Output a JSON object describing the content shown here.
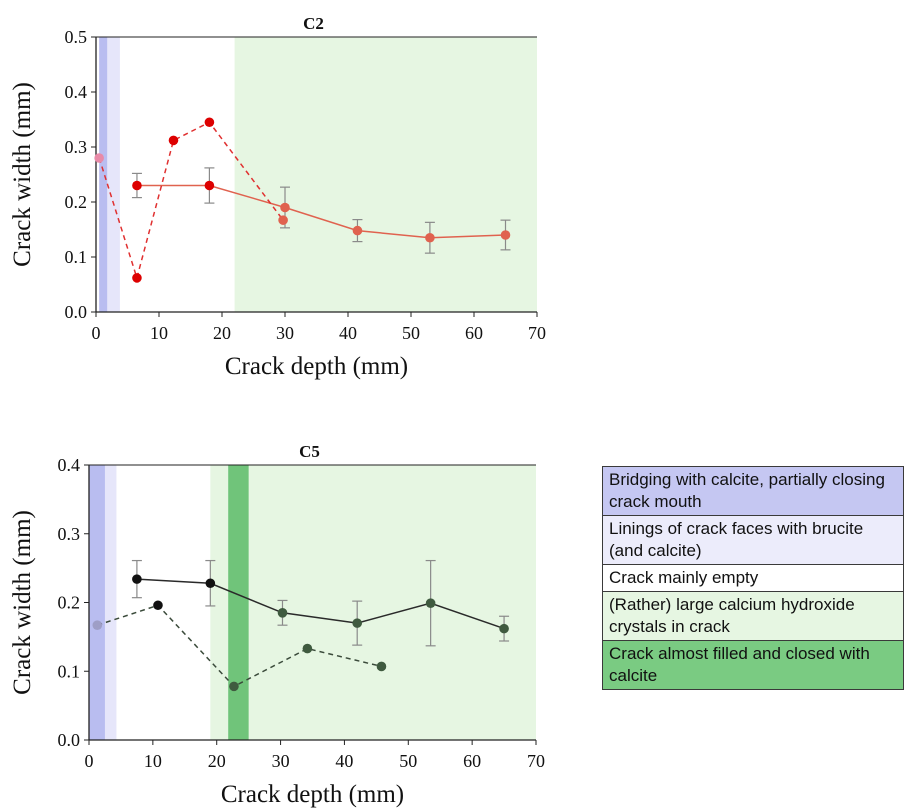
{
  "chart_data": [
    {
      "type": "line",
      "title": "C2",
      "xlabel": "Crack depth (mm)",
      "ylabel": "Crack width (mm)",
      "xlim": [
        0,
        70
      ],
      "ylim": [
        0,
        0.5
      ],
      "xticks": [
        "0",
        "10",
        "20",
        "30",
        "40",
        "50",
        "60",
        "70"
      ],
      "yticks": [
        "0.0",
        "0.1",
        "0.2",
        "0.3",
        "0.4",
        "0.5"
      ],
      "zones": [
        {
          "x0": 0.5,
          "x1": 1.8,
          "color": "#b9bdf0"
        },
        {
          "x0": 1.8,
          "x1": 3.8,
          "color": "#e6e6fa"
        },
        {
          "x0": 22,
          "x1": 70,
          "color": "#e6f6e2"
        }
      ],
      "series": [
        {
          "style": "solid",
          "color": "#e0624f",
          "points": [
            {
              "x": 6.5,
              "y": 0.23,
              "err": 0.022,
              "color": "#dd0000"
            },
            {
              "x": 18,
              "y": 0.23,
              "err": 0.032,
              "color": "#dd0000"
            },
            {
              "x": 30,
              "y": 0.19,
              "err": 0.037
            },
            {
              "x": 41.5,
              "y": 0.148,
              "err": 0.02
            },
            {
              "x": 53,
              "y": 0.135,
              "err": 0.028
            },
            {
              "x": 65,
              "y": 0.14,
              "err": 0.027
            }
          ]
        },
        {
          "style": "dashed",
          "color": "#e03030",
          "points": [
            {
              "x": 0.5,
              "y": 0.28,
              "color": "#e88aa8"
            },
            {
              "x": 6.5,
              "y": 0.062,
              "color": "#dd0000"
            },
            {
              "x": 12.3,
              "y": 0.312,
              "color": "#dd0000"
            },
            {
              "x": 18,
              "y": 0.345,
              "color": "#dd0000"
            },
            {
              "x": 29.7,
              "y": 0.167,
              "color": "#e0624f"
            }
          ]
        }
      ]
    },
    {
      "type": "line",
      "title": "C5",
      "xlabel": "Crack depth (mm)",
      "ylabel": "Crack width (mm)",
      "xlim": [
        0,
        70
      ],
      "ylim": [
        0,
        0.4
      ],
      "xticks": [
        "0",
        "10",
        "20",
        "30",
        "40",
        "50",
        "60",
        "70"
      ],
      "yticks": [
        "0.0",
        "0.1",
        "0.2",
        "0.3",
        "0.4"
      ],
      "zones": [
        {
          "x0": 0,
          "x1": 2.5,
          "color": "#b9bdf0"
        },
        {
          "x0": 2.5,
          "x1": 4.3,
          "color": "#e6e6fa"
        },
        {
          "x0": 19,
          "x1": 70,
          "color": "#e6f6e2"
        },
        {
          "x0": 21.8,
          "x1": 25,
          "color": "#70c47a"
        }
      ],
      "series": [
        {
          "style": "solid",
          "color": "#2a2a2a",
          "points": [
            {
              "x": 7.5,
              "y": 0.234,
              "err": 0.027,
              "color": "#111111"
            },
            {
              "x": 19,
              "y": 0.228,
              "err": 0.033,
              "color": "#111111"
            },
            {
              "x": 30.3,
              "y": 0.185,
              "err": 0.018,
              "color": "#3f5a3f"
            },
            {
              "x": 42,
              "y": 0.17,
              "err": 0.032,
              "color": "#3f5a3f"
            },
            {
              "x": 53.5,
              "y": 0.199,
              "err": 0.062,
              "color": "#3f5a3f"
            },
            {
              "x": 65,
              "y": 0.162,
              "err": 0.018,
              "color": "#3f5a3f"
            }
          ]
        },
        {
          "style": "dashed",
          "color": "#3a4a3a",
          "points": [
            {
              "x": 1.3,
              "y": 0.167,
              "color": "#9e9ec6"
            },
            {
              "x": 10.8,
              "y": 0.196,
              "color": "#111111"
            },
            {
              "x": 22.7,
              "y": 0.078,
              "color": "#3f5a3f"
            },
            {
              "x": 34.2,
              "y": 0.133,
              "color": "#3f5a3f"
            },
            {
              "x": 45.8,
              "y": 0.107,
              "color": "#3f5a3f"
            }
          ]
        }
      ]
    }
  ],
  "legend": {
    "items": [
      {
        "label": "Bridging with calcite, partially closing crack mouth",
        "color": "#c5c7f2"
      },
      {
        "label": "Linings of crack faces with brucite (and calcite)",
        "color": "#ececfb"
      },
      {
        "label": "Crack mainly empty",
        "color": "#ffffff"
      },
      {
        "label": "(Rather) large calcium hydroxide crystals in crack",
        "color": "#e6f6e2"
      },
      {
        "label": "Crack almost filled  and closed with calcite",
        "color": "#7acb82"
      }
    ]
  }
}
